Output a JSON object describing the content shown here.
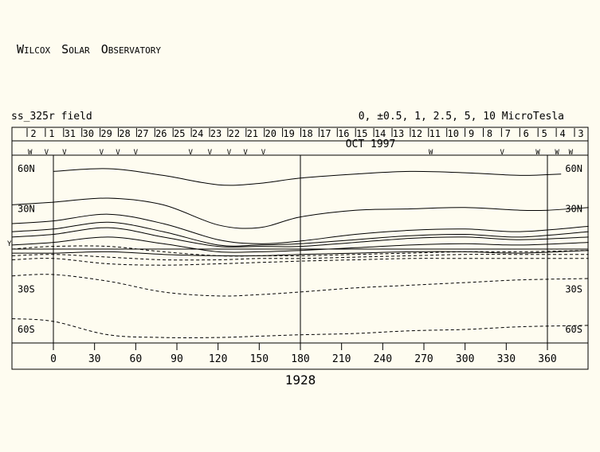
{
  "header": {
    "observatory_words": [
      {
        "initial": "W",
        "rest": "ILCOX"
      },
      {
        "initial": "S",
        "rest": "OLAR"
      },
      {
        "initial": "O",
        "rest": "BSERVATORY"
      }
    ],
    "field_label": "ss_325r field",
    "contour_legend": "0, ±0.5, 1, 2.5, 5, 10 MicroTesla"
  },
  "chart_data": {
    "type": "line",
    "title": "",
    "month_label": "OCT 1997",
    "rotation_label": "1928",
    "day_ticks": [
      "2",
      "1",
      "31",
      "30",
      "29",
      "28",
      "27",
      "26",
      "25",
      "24",
      "23",
      "22",
      "21",
      "20",
      "19",
      "18",
      "17",
      "16",
      "15",
      "14",
      "13",
      "12",
      "11",
      "10",
      "9",
      "8",
      "7",
      "6",
      "5",
      "4",
      "3"
    ],
    "x_ticks": [
      0,
      30,
      60,
      90,
      120,
      150,
      180,
      210,
      240,
      270,
      300,
      330,
      360
    ],
    "xlim": [
      -30,
      390
    ],
    "ylim": [
      -75,
      75
    ],
    "y_labels": [
      "60N",
      "30N",
      "30S",
      "60S"
    ],
    "y_label_values": [
      60,
      30,
      -30,
      -60
    ],
    "y_edge_marker": "Y",
    "vertical_lines": [
      0,
      180,
      360
    ],
    "observation_marks": [
      {
        "lon": -17,
        "mark": "W"
      },
      {
        "lon": -5,
        "mark": "V"
      },
      {
        "lon": 8,
        "mark": "V"
      },
      {
        "lon": 35,
        "mark": "V"
      },
      {
        "lon": 47,
        "mark": "V"
      },
      {
        "lon": 60,
        "mark": "V"
      },
      {
        "lon": 100,
        "mark": "V"
      },
      {
        "lon": 114,
        "mark": "V"
      },
      {
        "lon": 128,
        "mark": "V"
      },
      {
        "lon": 140,
        "mark": "V"
      },
      {
        "lon": 153,
        "mark": "V"
      },
      {
        "lon": 275,
        "mark": "W"
      },
      {
        "lon": 327,
        "mark": "V"
      },
      {
        "lon": 353,
        "mark": "W"
      },
      {
        "lon": 367,
        "mark": "W"
      },
      {
        "lon": 377,
        "mark": "W"
      }
    ],
    "series": [
      {
        "style": "solid",
        "lon": [
          0,
          40,
          80,
          120,
          150,
          180,
          220,
          260,
          300,
          340,
          370
        ],
        "lat": [
          58,
          60,
          55,
          48,
          49,
          53,
          56,
          58,
          57,
          55,
          56
        ]
      },
      {
        "style": "solid",
        "lon": [
          -30,
          0,
          40,
          80,
          120,
          150,
          180,
          220,
          260,
          300,
          340,
          360,
          390
        ],
        "lat": [
          33,
          35,
          38,
          33,
          18,
          16,
          24,
          29,
          30,
          31,
          29,
          29,
          31
        ]
      },
      {
        "style": "solid",
        "lon": [
          -30,
          0,
          40,
          80,
          120,
          150,
          180,
          220,
          260,
          300,
          340,
          390
        ],
        "lat": [
          19,
          21,
          26,
          19,
          7,
          4,
          6,
          11,
          14,
          15,
          13,
          17
        ]
      },
      {
        "style": "solid",
        "lon": [
          -30,
          0,
          40,
          80,
          120,
          150,
          180,
          220,
          260,
          300,
          340,
          390
        ],
        "lat": [
          13,
          15,
          20,
          13,
          3,
          3,
          4,
          7,
          10,
          11,
          9,
          13
        ]
      },
      {
        "style": "solid",
        "lon": [
          -30,
          0,
          40,
          80,
          120,
          150,
          180,
          220,
          260,
          300,
          340,
          390
        ],
        "lat": [
          9,
          11,
          16,
          9,
          2,
          2,
          2,
          5,
          8,
          9,
          7,
          9
        ]
      },
      {
        "style": "solid",
        "lon": [
          -30,
          0,
          40,
          80,
          120,
          150,
          180,
          220,
          260,
          300,
          340,
          390
        ],
        "lat": [
          3,
          5,
          9,
          4,
          -2,
          -2,
          -1,
          1,
          3,
          4,
          3,
          5
        ]
      },
      {
        "style": "solid",
        "lon": [
          -30,
          0,
          40,
          80,
          120,
          150,
          180,
          220,
          260,
          300,
          340,
          390
        ],
        "lat": [
          -3,
          -3,
          -2,
          -4,
          -5,
          -5,
          -4,
          -3,
          -2,
          -2,
          -3,
          -1
        ]
      },
      {
        "style": "dashed",
        "lon": [
          -30,
          0,
          40,
          80,
          120,
          150,
          180,
          220,
          260,
          300,
          340,
          390
        ],
        "lat": [
          0,
          2,
          2,
          -2,
          -5,
          -5,
          -5,
          -4,
          -3,
          -2,
          -2,
          -1
        ]
      },
      {
        "style": "dashed",
        "lon": [
          -30,
          0,
          40,
          80,
          120,
          150,
          180,
          220,
          260,
          300,
          340,
          390
        ],
        "lat": [
          -5,
          -4,
          -6,
          -8,
          -8,
          -7,
          -7,
          -6,
          -5,
          -4,
          -4,
          -4
        ]
      },
      {
        "style": "dashed",
        "lon": [
          -30,
          0,
          40,
          80,
          120,
          150,
          180,
          220,
          260,
          300,
          340,
          390
        ],
        "lat": [
          -8,
          -7,
          -11,
          -12,
          -11,
          -10,
          -9,
          -8,
          -7,
          -7,
          -7,
          -7
        ]
      },
      {
        "style": "dashed",
        "lon": [
          -30,
          0,
          40,
          80,
          120,
          150,
          180,
          220,
          260,
          300,
          340,
          390
        ],
        "lat": [
          -20,
          -19,
          -24,
          -32,
          -35,
          -34,
          -32,
          -29,
          -27,
          -25,
          -23,
          -22
        ]
      },
      {
        "style": "dashed",
        "lon": [
          -30,
          0,
          40,
          80,
          120,
          150,
          180,
          220,
          260,
          300,
          340,
          390
        ],
        "lat": [
          -52,
          -54,
          -64,
          -66,
          -66,
          -65,
          -64,
          -63,
          -61,
          -60,
          -58,
          -57
        ]
      }
    ]
  }
}
